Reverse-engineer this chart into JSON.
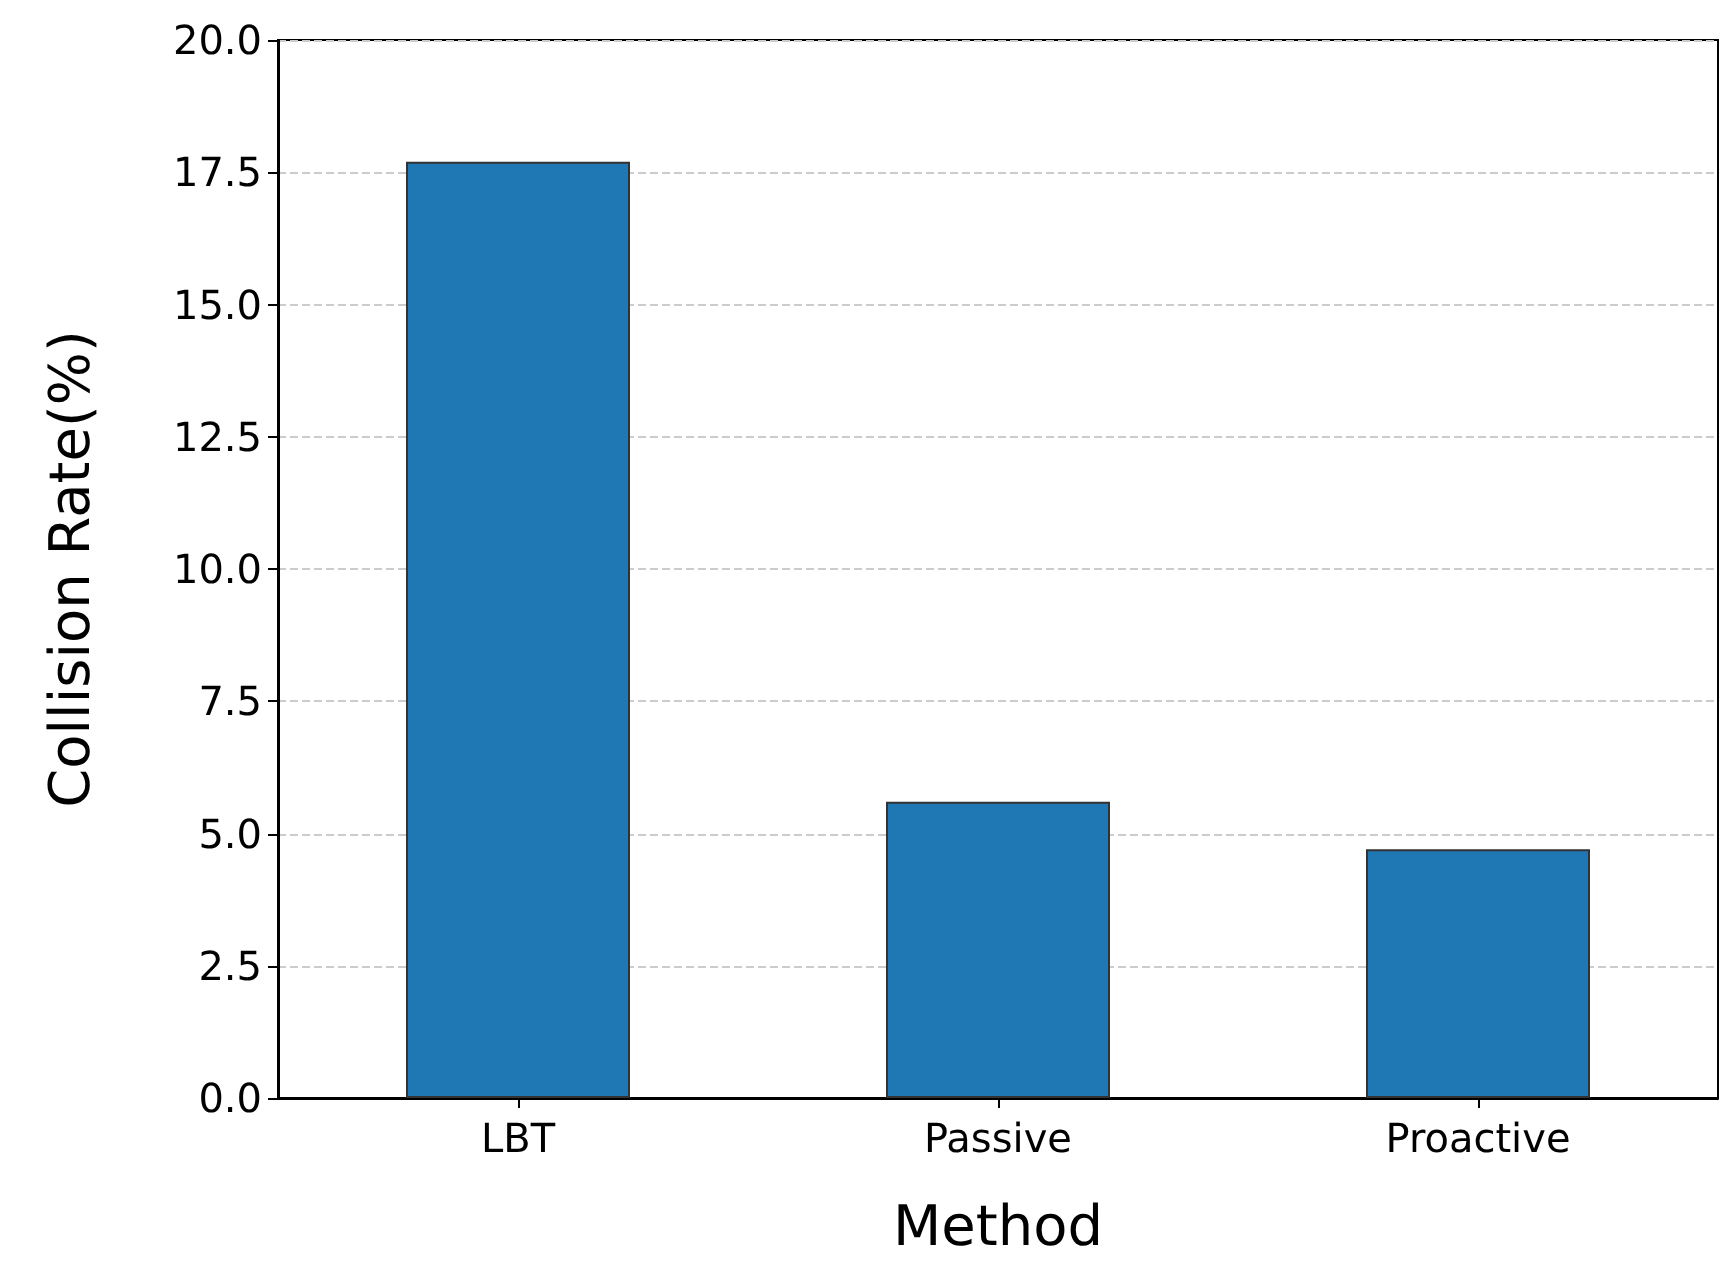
{
  "chart_data": {
    "type": "bar",
    "xlabel": "Method",
    "ylabel": "Collision Rate(%)",
    "categories": [
      "LBT",
      "Passive",
      "Proactive"
    ],
    "values": [
      17.7,
      5.6,
      4.7
    ],
    "color": "#1f77b4",
    "ylim": [
      0,
      20
    ],
    "yticks": [
      {
        "value": 0,
        "label": "0.0"
      },
      2.5,
      {
        "value": 5,
        "label": "5.0"
      },
      7.5,
      {
        "value": 10,
        "label": "10.0"
      },
      12.5,
      {
        "value": 15,
        "label": "15.0"
      },
      17.5,
      {
        "value": 20,
        "label": "20.0"
      }
    ],
    "grid": "y"
  }
}
